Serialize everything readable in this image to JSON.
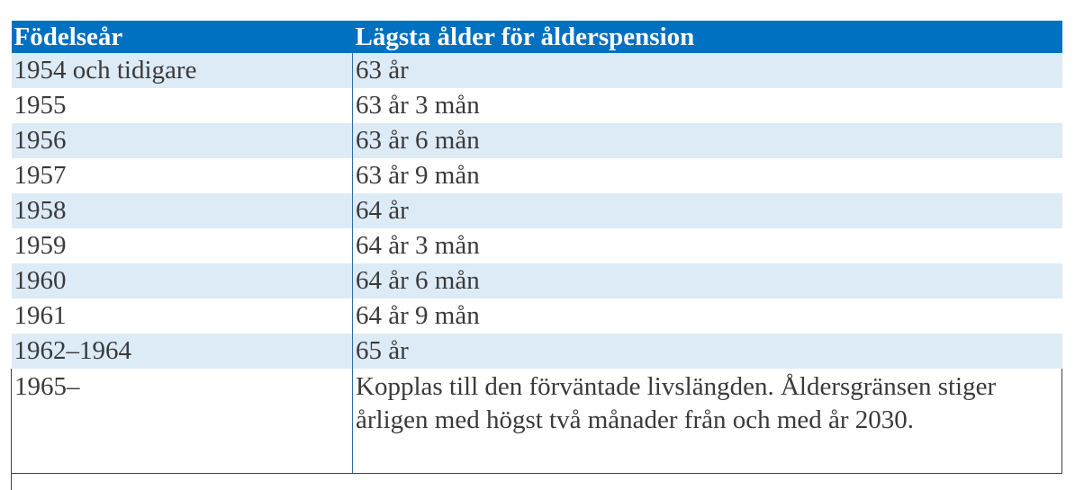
{
  "table": {
    "headers": [
      "Födelseår",
      "Lägsta ålder för ålderspension"
    ],
    "rows": [
      [
        "1954 och tidigare",
        "63 år"
      ],
      [
        "1955",
        "63 år 3 mån"
      ],
      [
        "1956",
        "63 år 6 mån"
      ],
      [
        "1957",
        "63 år 9 mån"
      ],
      [
        "1958",
        "64 år"
      ],
      [
        "1959",
        "64 år 3 mån"
      ],
      [
        "1960",
        "64 år 6 mån"
      ],
      [
        "1961",
        "64 år 9 mån"
      ],
      [
        "1962–1964",
        "65 år"
      ],
      [
        "1965–",
        "Kopplas till den förväntade livslängden. Åldersgränsen stiger årligen med högst två månader från och med år 2030."
      ]
    ]
  },
  "colors": {
    "header_bg": "#0070c0",
    "header_text": "#ffffff",
    "band_bg": "#ddebf7",
    "body_text": "#3a3a3a"
  }
}
